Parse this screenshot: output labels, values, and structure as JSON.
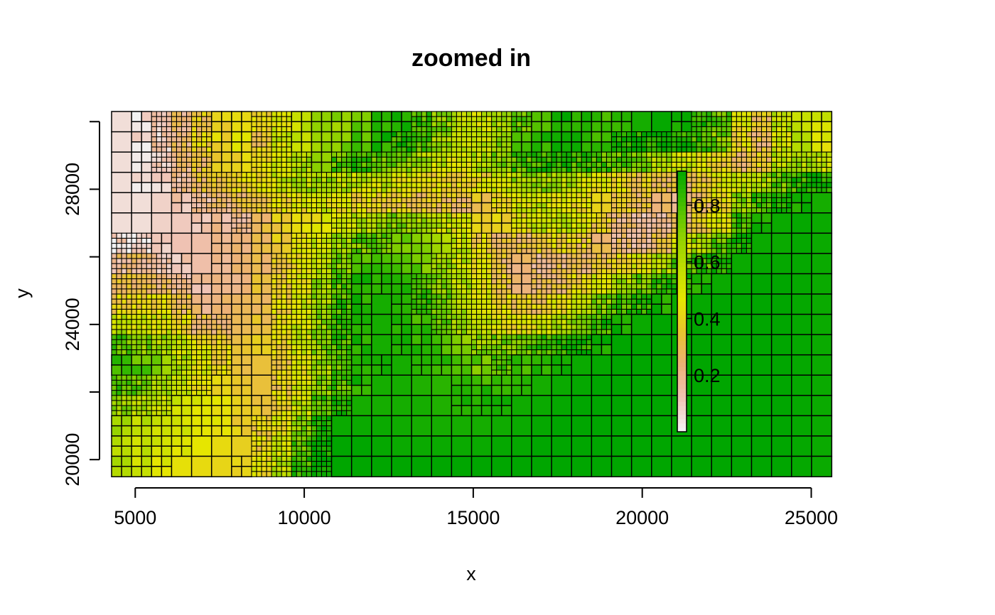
{
  "chart_data": {
    "type": "heatmap",
    "title": "zoomed in",
    "xlabel": "x",
    "ylabel": "y",
    "xlim": [
      4300,
      25600
    ],
    "ylim": [
      19500,
      30300
    ],
    "x_ticks": [
      5000,
      10000,
      15000,
      20000,
      25000
    ],
    "x_tick_labels": [
      "5000",
      "10000",
      "15000",
      "20000",
      "25000"
    ],
    "y_ticks": [
      20000,
      22000,
      24000,
      26000,
      28000,
      30000
    ],
    "y_tick_labels": [
      "20000",
      "",
      "24000",
      "",
      "28000",
      ""
    ],
    "grid": false,
    "legend": {
      "placement": "inside-right",
      "range": [
        0,
        0.92
      ],
      "ticks": [
        0.2,
        0.4,
        0.6,
        0.8
      ],
      "tick_labels": [
        "0.2",
        "0.4",
        "0.6",
        "0.8"
      ]
    },
    "colormap": [
      "#F2F2F2",
      "#EFC2B3",
      "#ECB176",
      "#E8C32E",
      "#E6E600",
      "#BEDD00",
      "#8BD000",
      "#3EBB00",
      "#00A600"
    ],
    "quadtree_grid": {
      "cols": 36,
      "rows": 18,
      "values": [
        [
          0.05,
          0.05,
          0.12,
          0.22,
          0.35,
          0.4,
          0.45,
          0.4,
          0.52,
          0.58,
          0.66,
          0.72,
          0.8,
          0.88,
          0.9,
          0.84,
          0.72,
          0.6,
          0.54,
          0.68,
          0.78,
          0.86,
          0.92,
          0.9,
          0.82,
          0.9,
          0.92,
          0.95,
          0.92,
          0.88,
          0.78,
          0.46,
          0.32,
          0.58,
          0.62,
          0.55
        ],
        [
          0.05,
          0.05,
          0.12,
          0.25,
          0.38,
          0.42,
          0.45,
          0.38,
          0.55,
          0.62,
          0.7,
          0.75,
          0.82,
          0.9,
          0.88,
          0.8,
          0.68,
          0.58,
          0.6,
          0.72,
          0.8,
          0.88,
          0.92,
          0.9,
          0.85,
          0.9,
          0.92,
          0.94,
          0.9,
          0.86,
          0.74,
          0.4,
          0.28,
          0.55,
          0.6,
          0.52
        ],
        [
          0.05,
          0.05,
          0.1,
          0.2,
          0.32,
          0.36,
          0.42,
          0.45,
          0.55,
          0.66,
          0.74,
          0.8,
          0.86,
          0.82,
          0.74,
          0.66,
          0.58,
          0.52,
          0.62,
          0.74,
          0.82,
          0.86,
          0.88,
          0.86,
          0.82,
          0.8,
          0.72,
          0.64,
          0.56,
          0.48,
          0.4,
          0.3,
          0.36,
          0.6,
          0.66,
          0.58
        ],
        [
          0.05,
          0.05,
          0.1,
          0.18,
          0.3,
          0.34,
          0.4,
          0.46,
          0.56,
          0.64,
          0.68,
          0.62,
          0.58,
          0.56,
          0.52,
          0.48,
          0.44,
          0.4,
          0.44,
          0.56,
          0.66,
          0.7,
          0.64,
          0.58,
          0.48,
          0.4,
          0.34,
          0.3,
          0.28,
          0.36,
          0.48,
          0.56,
          0.66,
          0.78,
          0.86,
          0.92
        ],
        [
          0.05,
          0.05,
          0.08,
          0.12,
          0.18,
          0.24,
          0.3,
          0.36,
          0.42,
          0.48,
          0.52,
          0.46,
          0.42,
          0.4,
          0.36,
          0.34,
          0.32,
          0.3,
          0.36,
          0.44,
          0.52,
          0.58,
          0.52,
          0.46,
          0.4,
          0.34,
          0.3,
          0.26,
          0.22,
          0.3,
          0.46,
          0.7,
          0.86,
          0.92,
          0.94,
          0.92
        ],
        [
          0.05,
          0.05,
          0.08,
          0.1,
          0.12,
          0.16,
          0.2,
          0.28,
          0.36,
          0.44,
          0.48,
          0.56,
          0.62,
          0.7,
          0.72,
          0.66,
          0.58,
          0.5,
          0.42,
          0.38,
          0.46,
          0.56,
          0.58,
          0.5,
          0.36,
          0.24,
          0.18,
          0.2,
          0.28,
          0.4,
          0.52,
          0.86,
          0.92,
          0.94,
          0.95,
          0.94
        ],
        [
          0.05,
          0.06,
          0.1,
          0.12,
          0.14,
          0.18,
          0.24,
          0.3,
          0.38,
          0.46,
          0.56,
          0.68,
          0.76,
          0.8,
          0.78,
          0.72,
          0.64,
          0.56,
          0.4,
          0.3,
          0.3,
          0.34,
          0.4,
          0.36,
          0.28,
          0.22,
          0.2,
          0.32,
          0.5,
          0.66,
          0.8,
          0.92,
          0.94,
          0.94,
          0.95,
          0.94
        ],
        [
          0.2,
          0.22,
          0.14,
          0.12,
          0.14,
          0.18,
          0.22,
          0.28,
          0.36,
          0.46,
          0.6,
          0.74,
          0.82,
          0.86,
          0.84,
          0.78,
          0.7,
          0.6,
          0.44,
          0.3,
          0.24,
          0.22,
          0.26,
          0.28,
          0.34,
          0.4,
          0.5,
          0.66,
          0.78,
          0.84,
          0.9,
          0.94,
          0.95,
          0.95,
          0.95,
          0.94
        ],
        [
          0.3,
          0.32,
          0.24,
          0.18,
          0.16,
          0.2,
          0.24,
          0.3,
          0.38,
          0.5,
          0.66,
          0.8,
          0.88,
          0.9,
          0.88,
          0.82,
          0.72,
          0.62,
          0.48,
          0.34,
          0.28,
          0.26,
          0.3,
          0.4,
          0.52,
          0.66,
          0.76,
          0.84,
          0.9,
          0.92,
          0.94,
          0.95,
          0.96,
          0.96,
          0.95,
          0.94
        ],
        [
          0.4,
          0.42,
          0.44,
          0.3,
          0.22,
          0.24,
          0.28,
          0.32,
          0.4,
          0.54,
          0.7,
          0.84,
          0.9,
          0.92,
          0.9,
          0.86,
          0.76,
          0.66,
          0.54,
          0.42,
          0.36,
          0.36,
          0.44,
          0.58,
          0.72,
          0.84,
          0.9,
          0.92,
          0.94,
          0.95,
          0.96,
          0.96,
          0.96,
          0.96,
          0.95,
          0.94
        ],
        [
          0.6,
          0.56,
          0.52,
          0.42,
          0.3,
          0.28,
          0.3,
          0.34,
          0.42,
          0.56,
          0.72,
          0.84,
          0.9,
          0.92,
          0.9,
          0.86,
          0.78,
          0.68,
          0.58,
          0.5,
          0.46,
          0.52,
          0.64,
          0.76,
          0.86,
          0.92,
          0.94,
          0.96,
          0.96,
          0.96,
          0.96,
          0.96,
          0.96,
          0.96,
          0.95,
          0.94
        ],
        [
          0.8,
          0.74,
          0.66,
          0.58,
          0.46,
          0.38,
          0.34,
          0.36,
          0.42,
          0.56,
          0.72,
          0.84,
          0.9,
          0.92,
          0.92,
          0.88,
          0.82,
          0.74,
          0.7,
          0.72,
          0.78,
          0.84,
          0.88,
          0.92,
          0.94,
          0.96,
          0.96,
          0.96,
          0.96,
          0.96,
          0.96,
          0.96,
          0.96,
          0.96,
          0.95,
          0.94
        ],
        [
          0.86,
          0.8,
          0.72,
          0.64,
          0.52,
          0.4,
          0.34,
          0.34,
          0.38,
          0.5,
          0.68,
          0.8,
          0.88,
          0.92,
          0.92,
          0.9,
          0.86,
          0.8,
          0.78,
          0.82,
          0.86,
          0.9,
          0.92,
          0.94,
          0.95,
          0.96,
          0.96,
          0.96,
          0.96,
          0.96,
          0.96,
          0.96,
          0.96,
          0.96,
          0.95,
          0.94
        ],
        [
          0.82,
          0.76,
          0.68,
          0.58,
          0.46,
          0.4,
          0.36,
          0.34,
          0.38,
          0.52,
          0.7,
          0.82,
          0.9,
          0.92,
          0.92,
          0.9,
          0.88,
          0.86,
          0.86,
          0.88,
          0.9,
          0.92,
          0.94,
          0.95,
          0.96,
          0.96,
          0.96,
          0.96,
          0.96,
          0.96,
          0.96,
          0.96,
          0.96,
          0.96,
          0.95,
          0.94
        ],
        [
          0.7,
          0.64,
          0.58,
          0.56,
          0.5,
          0.44,
          0.38,
          0.36,
          0.42,
          0.6,
          0.8,
          0.9,
          0.92,
          0.92,
          0.92,
          0.92,
          0.9,
          0.9,
          0.9,
          0.92,
          0.93,
          0.94,
          0.95,
          0.96,
          0.96,
          0.96,
          0.96,
          0.96,
          0.96,
          0.96,
          0.96,
          0.96,
          0.96,
          0.96,
          0.95,
          0.94
        ],
        [
          0.66,
          0.6,
          0.56,
          0.54,
          0.5,
          0.46,
          0.4,
          0.38,
          0.48,
          0.7,
          0.9,
          0.94,
          0.94,
          0.94,
          0.93,
          0.92,
          0.92,
          0.92,
          0.92,
          0.93,
          0.94,
          0.95,
          0.96,
          0.96,
          0.96,
          0.96,
          0.96,
          0.96,
          0.96,
          0.96,
          0.96,
          0.96,
          0.96,
          0.96,
          0.95,
          0.94
        ],
        [
          0.62,
          0.58,
          0.52,
          0.5,
          0.48,
          0.44,
          0.4,
          0.4,
          0.54,
          0.8,
          0.95,
          0.96,
          0.96,
          0.95,
          0.94,
          0.94,
          0.94,
          0.94,
          0.94,
          0.95,
          0.95,
          0.96,
          0.96,
          0.96,
          0.96,
          0.96,
          0.96,
          0.96,
          0.96,
          0.96,
          0.96,
          0.96,
          0.96,
          0.96,
          0.95,
          0.94
        ],
        [
          0.62,
          0.56,
          0.5,
          0.46,
          0.44,
          0.42,
          0.42,
          0.46,
          0.6,
          0.86,
          0.96,
          0.96,
          0.96,
          0.96,
          0.96,
          0.96,
          0.96,
          0.96,
          0.96,
          0.96,
          0.96,
          0.96,
          0.96,
          0.96,
          0.96,
          0.96,
          0.96,
          0.96,
          0.96,
          0.96,
          0.96,
          0.96,
          0.96,
          0.96,
          0.95,
          0.94
        ]
      ]
    }
  }
}
